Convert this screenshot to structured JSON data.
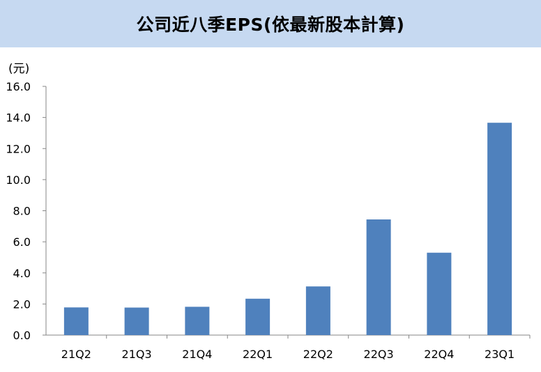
{
  "chart_data": {
    "type": "bar",
    "title": "公司近八季EPS(依最新股本計算)",
    "ylabel": "(元)",
    "xlabel": "",
    "categories": [
      "21Q2",
      "21Q3",
      "21Q4",
      "22Q1",
      "22Q2",
      "22Q3",
      "22Q4",
      "23Q1"
    ],
    "values": [
      1.78,
      1.77,
      1.82,
      2.34,
      3.13,
      7.44,
      5.3,
      13.66
    ],
    "ylim": [
      0,
      16
    ],
    "yticks": [
      "0.0",
      "2.0",
      "4.0",
      "6.0",
      "8.0",
      "10.0",
      "12.0",
      "14.0",
      "16.0"
    ],
    "grid": false,
    "legend": "none",
    "bar_color": "#4f81bd",
    "title_bg_color": "#c6d9f1"
  }
}
